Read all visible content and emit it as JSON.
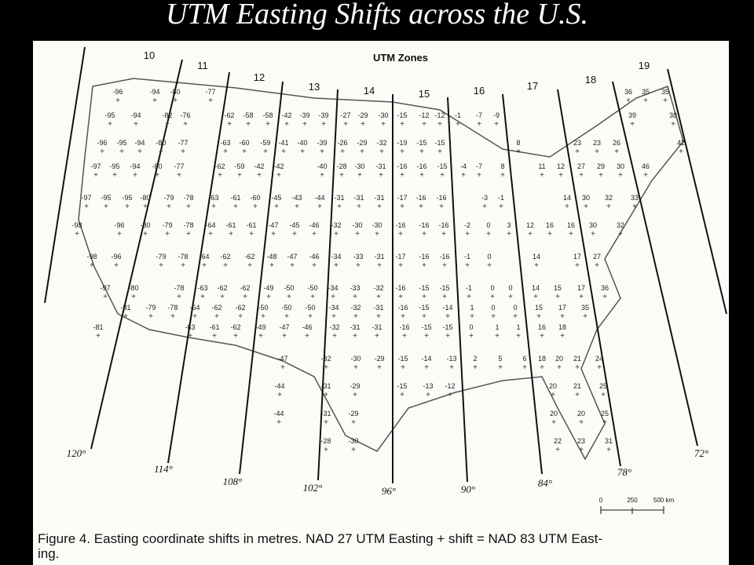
{
  "title": "UTM Easting Shifts across the U.S.",
  "map": {
    "heading": "UTM Zones",
    "zones": [
      "10",
      "11",
      "12",
      "13",
      "14",
      "15",
      "16",
      "17",
      "18",
      "19"
    ],
    "meridians": [
      "120°",
      "114°",
      "108°",
      "102°",
      "96°",
      "90°",
      "84°",
      "78°",
      "72°"
    ],
    "scale": [
      "0",
      "250",
      "500 km"
    ],
    "shift_rows": [
      [
        -96,
        -94,
        -80,
        -77,
        36,
        35,
        35
      ],
      [
        -95,
        -94,
        -82,
        -76,
        -62,
        -58,
        -58,
        -42,
        -39,
        -39,
        -27,
        -29,
        -30,
        -15,
        -12,
        -12,
        -1,
        -7,
        -9,
        39,
        38
      ],
      [
        -96,
        -95,
        -94,
        -80,
        -77,
        -63,
        -60,
        -59,
        -41,
        -40,
        -39,
        -26,
        -29,
        -32,
        -19,
        -15,
        -15,
        8,
        23,
        23,
        26,
        42
      ],
      [
        -97,
        -95,
        -94,
        -80,
        -77,
        -62,
        -59,
        -42,
        -42,
        -40,
        -28,
        -30,
        -31,
        -16,
        -16,
        -15,
        -4,
        -7,
        8,
        11,
        12,
        27,
        29,
        30,
        46
      ],
      [
        -97,
        -95,
        -95,
        -80,
        -79,
        -78,
        -63,
        -61,
        -60,
        -45,
        -43,
        -44,
        -31,
        -31,
        -31,
        -17,
        -16,
        -16,
        -3,
        -1,
        14,
        30,
        32,
        33
      ],
      [
        -98,
        -96,
        -80,
        -79,
        -78,
        -64,
        -61,
        -61,
        -47,
        -45,
        -46,
        -32,
        -30,
        -30,
        -16,
        -16,
        -16,
        -2,
        0,
        3,
        12,
        16,
        16,
        30,
        32
      ],
      [
        -98,
        -96,
        -79,
        -78,
        -64,
        -62,
        -62,
        -48,
        -47,
        -46,
        -34,
        -33,
        -31,
        -17,
        -16,
        -16,
        -1,
        0,
        14,
        17,
        27
      ],
      [
        -97,
        -80,
        -78,
        -63,
        -62,
        -62,
        -49,
        -50,
        -50,
        -34,
        -33,
        -32,
        -16,
        -15,
        -15,
        -1,
        0,
        0,
        14,
        15,
        17,
        36
      ],
      [
        -81,
        -79,
        -78,
        -64,
        -62,
        -62,
        -50,
        -50,
        -50,
        -34,
        -32,
        -31,
        -16,
        -15,
        -14,
        1,
        0,
        0,
        15,
        17,
        35
      ],
      [
        -81,
        -63,
        -61,
        -62,
        -49,
        -47,
        -46,
        -32,
        -31,
        -31,
        -16,
        -15,
        -15,
        0,
        1,
        1,
        16,
        18
      ],
      [
        -47,
        -32,
        -30,
        -29,
        -15,
        -14,
        -13,
        2,
        5,
        6,
        18,
        20,
        21,
        24
      ],
      [
        -44,
        -31,
        -29,
        -15,
        -13,
        -12,
        20,
        21,
        25
      ],
      [
        -44,
        -31,
        -29,
        20,
        20,
        25
      ],
      [
        -28,
        -30,
        22,
        23,
        31
      ]
    ]
  },
  "caption": [
    "Figure 4. Easting coordinate shifts in metres. NAD 27 UTM Easting + shift = NAD 83 UTM East-",
    "ing."
  ]
}
